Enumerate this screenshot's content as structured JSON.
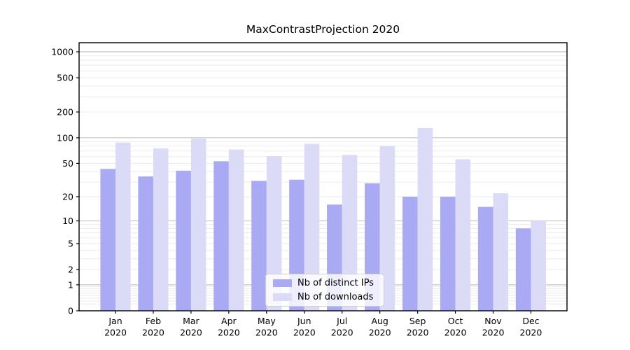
{
  "title": "MaxContrastProjection 2020",
  "chart_data": {
    "type": "bar",
    "title": "MaxContrastProjection 2020",
    "categories": [
      "Jan",
      "Feb",
      "Mar",
      "Apr",
      "May",
      "Jun",
      "Jul",
      "Aug",
      "Sep",
      "Oct",
      "Nov",
      "Dec"
    ],
    "year_label": "2020",
    "series": [
      {
        "name": "Nb of distinct IPs",
        "color": "#a9a9f4",
        "values": [
          43,
          35,
          41,
          53,
          31,
          32,
          16,
          29,
          20,
          20,
          15,
          8
        ]
      },
      {
        "name": "Nb of downloads",
        "color": "#dbdbf8",
        "values": [
          88,
          75,
          98,
          73,
          61,
          85,
          63,
          80,
          130,
          56,
          22,
          10
        ]
      }
    ],
    "xlabel": "",
    "ylabel": "",
    "yscale": "log1p",
    "yticks": [
      0,
      1,
      2,
      5,
      10,
      20,
      50,
      100,
      200,
      500,
      1000
    ],
    "ylim": [
      0,
      1275
    ],
    "grid": "horizontal major at 1/10/100/1000 plus log minor lines",
    "legend_position": "lower-center"
  },
  "colors": {
    "background": "#ffffff",
    "axis": "#000000",
    "grid_major": "#c4c4c4",
    "grid_minor": "#ebebeb",
    "legend_border": "#d0d0d0",
    "bar_distinct_ips": "#a9a9f4",
    "bar_downloads": "#dbdbf8"
  }
}
